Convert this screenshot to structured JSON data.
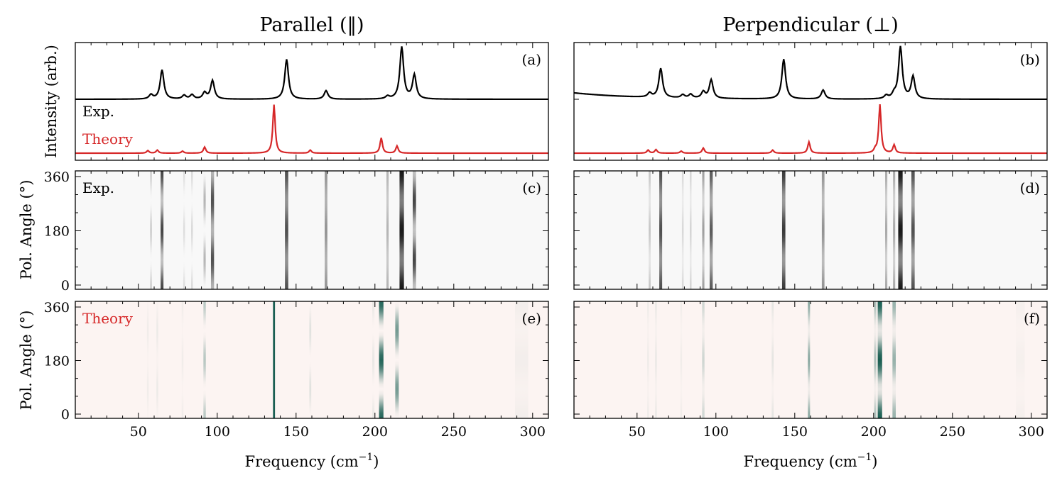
{
  "chart_data": {
    "type": "figure",
    "columns": [
      {
        "title": "Parallel (‖)",
        "spectrum_panel": {
          "label": "(a)",
          "legend": [
            "Exp.",
            "Theory"
          ],
          "exp_peaks": [
            [
              58,
              0.08
            ],
            [
              65,
              0.55
            ],
            [
              79,
              0.07
            ],
            [
              84,
              0.08
            ],
            [
              92,
              0.12
            ],
            [
              97,
              0.35
            ],
            [
              144,
              0.75
            ],
            [
              169,
              0.16
            ],
            [
              208,
              0.05
            ],
            [
              217,
              0.98
            ],
            [
              225,
              0.45
            ]
          ],
          "theory_peaks": [
            [
              56,
              0.05
            ],
            [
              62,
              0.06
            ],
            [
              78,
              0.04
            ],
            [
              92,
              0.12
            ],
            [
              136,
              0.95
            ],
            [
              159,
              0.06
            ],
            [
              204,
              0.3
            ],
            [
              214,
              0.14
            ]
          ]
        },
        "exp_map": {
          "label": "(c)",
          "annotation": "Exp.",
          "mode": "grey",
          "lines": [
            {
              "f": 58,
              "w": 0.9,
              "a": 0.18,
              "ph": 0,
              "m": 1
            },
            {
              "f": 65,
              "w": 1.3,
              "a": 0.8,
              "ph": 0,
              "m": 0.7
            },
            {
              "f": 79,
              "w": 0.8,
              "a": 0.12,
              "ph": 0,
              "m": 1
            },
            {
              "f": 84,
              "w": 0.8,
              "a": 0.14,
              "ph": 0,
              "m": 1
            },
            {
              "f": 92,
              "w": 1.0,
              "a": 0.3,
              "ph": 90,
              "m": 1
            },
            {
              "f": 97,
              "w": 1.4,
              "a": 0.75,
              "ph": 90,
              "m": 0.6
            },
            {
              "f": 144,
              "w": 1.5,
              "a": 0.75,
              "ph": 0,
              "m": 0.4
            },
            {
              "f": 169,
              "w": 1.2,
              "a": 0.45,
              "ph": 0,
              "m": 0.3
            },
            {
              "f": 208,
              "w": 1.0,
              "a": 0.3,
              "ph": 0,
              "m": 0.3
            },
            {
              "f": 217,
              "w": 2.0,
              "a": 1.0,
              "ph": 0,
              "m": 0.45
            },
            {
              "f": 225,
              "w": 1.5,
              "a": 0.8,
              "ph": 90,
              "m": 0.7
            }
          ]
        },
        "theory_map": {
          "label": "(e)",
          "annotation": "Theory",
          "mode": "green",
          "lines": [
            {
              "f": 56,
              "w": 0.8,
              "a": 0.05,
              "ph": 90,
              "m": 0.8
            },
            {
              "f": 62,
              "w": 0.8,
              "a": 0.07,
              "ph": 90,
              "m": 0.8
            },
            {
              "f": 78,
              "w": 0.8,
              "a": 0.05,
              "ph": 0,
              "m": 0.8
            },
            {
              "f": 92,
              "w": 1.1,
              "a": 0.3,
              "ph": 0,
              "m": 1
            },
            {
              "f": 136,
              "w": 0.9,
              "a": 1.0,
              "ph": 0,
              "m": 0
            },
            {
              "f": 159,
              "w": 0.9,
              "a": 0.12,
              "ph": 90,
              "m": 1
            },
            {
              "f": 199,
              "w": 1.0,
              "a": 0.08,
              "ph": 0,
              "m": 1
            },
            {
              "f": 204,
              "w": 2.0,
              "a": 0.95,
              "ph": 0,
              "m": 1
            },
            {
              "f": 214,
              "w": 1.6,
              "a": 0.6,
              "ph": 90,
              "m": 1
            },
            {
              "f": 293,
              "w": 6.0,
              "a": 0.04,
              "ph": 0,
              "m": 0.6
            }
          ]
        }
      },
      {
        "title": "Perpendicular (⊥)",
        "spectrum_panel": {
          "label": "(b)",
          "legend": [],
          "exp_peaks": [
            [
              58,
              0.08
            ],
            [
              65,
              0.55
            ],
            [
              79,
              0.06
            ],
            [
              84,
              0.07
            ],
            [
              92,
              0.12
            ],
            [
              97,
              0.35
            ],
            [
              143,
              0.75
            ],
            [
              168,
              0.17
            ],
            [
              208,
              0.06
            ],
            [
              213,
              0.08
            ],
            [
              217,
              0.98
            ],
            [
              225,
              0.42
            ]
          ],
          "theory_peaks": [
            [
              57,
              0.06
            ],
            [
              62,
              0.07
            ],
            [
              78,
              0.04
            ],
            [
              92,
              0.1
            ],
            [
              136,
              0.06
            ],
            [
              159,
              0.22
            ],
            [
              201,
              0.06
            ],
            [
              204,
              0.95
            ],
            [
              213,
              0.16
            ]
          ]
        },
        "exp_map": {
          "label": "(d)",
          "annotation": "",
          "mode": "grey",
          "lines": [
            {
              "f": 58,
              "w": 0.9,
              "a": 0.22,
              "ph": 0,
              "m": 0.6
            },
            {
              "f": 65,
              "w": 1.3,
              "a": 0.75,
              "ph": 0,
              "m": 0.4
            },
            {
              "f": 79,
              "w": 0.8,
              "a": 0.14,
              "ph": 0,
              "m": 0.6
            },
            {
              "f": 84,
              "w": 0.8,
              "a": 0.16,
              "ph": 0,
              "m": 0.6
            },
            {
              "f": 92,
              "w": 1.0,
              "a": 0.4,
              "ph": 0,
              "m": 0.6
            },
            {
              "f": 97,
              "w": 1.4,
              "a": 0.7,
              "ph": 0,
              "m": 0.5
            },
            {
              "f": 143,
              "w": 1.5,
              "a": 0.85,
              "ph": 0,
              "m": 0.5
            },
            {
              "f": 168,
              "w": 1.2,
              "a": 0.45,
              "ph": 0,
              "m": 0.4
            },
            {
              "f": 208,
              "w": 1.0,
              "a": 0.35,
              "ph": 0,
              "m": 0.5
            },
            {
              "f": 213,
              "w": 1.0,
              "a": 0.35,
              "ph": 0,
              "m": 0.5
            },
            {
              "f": 217,
              "w": 2.0,
              "a": 1.0,
              "ph": 0,
              "m": 0.5
            },
            {
              "f": 225,
              "w": 1.5,
              "a": 0.75,
              "ph": 0,
              "m": 0.5
            }
          ]
        },
        "theory_map": {
          "label": "(f)",
          "annotation": "",
          "mode": "green",
          "lines": [
            {
              "f": 57,
              "w": 0.8,
              "a": 0.06,
              "ph": 0,
              "m": 0.7
            },
            {
              "f": 62,
              "w": 0.8,
              "a": 0.08,
              "ph": 0,
              "m": 0.7
            },
            {
              "f": 78,
              "w": 0.8,
              "a": 0.05,
              "ph": 0,
              "m": 0.7
            },
            {
              "f": 92,
              "w": 1.1,
              "a": 0.2,
              "ph": 0,
              "m": 0.8
            },
            {
              "f": 136,
              "w": 0.9,
              "a": 0.1,
              "ph": 0,
              "m": 0.8
            },
            {
              "f": 159,
              "w": 1.0,
              "a": 0.5,
              "ph": 0,
              "m": 0.9
            },
            {
              "f": 201,
              "w": 1.0,
              "a": 0.35,
              "ph": 0,
              "m": 0.9
            },
            {
              "f": 204,
              "w": 2.0,
              "a": 1.0,
              "ph": 0,
              "m": 0.9
            },
            {
              "f": 213,
              "w": 1.5,
              "a": 0.45,
              "ph": 0,
              "m": 0.9
            },
            {
              "f": 293,
              "w": 4.0,
              "a": 0.03,
              "ph": 0,
              "m": 0.7
            }
          ]
        }
      }
    ],
    "spectrum_ylabel": "Intensity (arb.)",
    "map_ylabel": "Pol. Angle (°)",
    "xlabel": "Frequency (cm",
    "xlabel_sup": "−1",
    "xlabel_close": ")",
    "xlim": [
      10,
      310
    ],
    "xticks": [
      50,
      100,
      150,
      200,
      250,
      300
    ],
    "ylim_angle": [
      0,
      360
    ],
    "yticks_angle": [
      0,
      180,
      360
    ],
    "colors": {
      "exp": "#000000",
      "theory": "#d62728",
      "map_grey_bg": "#f8f8f8",
      "map_pink_bg": "#fcf4f2",
      "map_green": "#004d40"
    }
  }
}
